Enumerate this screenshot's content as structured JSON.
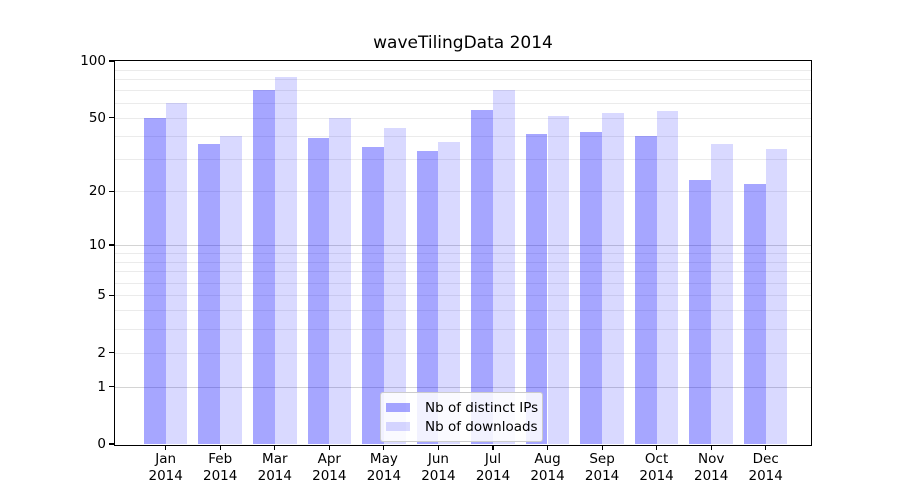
{
  "chart_data": {
    "type": "bar",
    "title": "waveTilingData 2014",
    "categories": [
      "Jan",
      "Feb",
      "Mar",
      "Apr",
      "May",
      "Jun",
      "Jul",
      "Aug",
      "Sep",
      "Oct",
      "Nov",
      "Dec"
    ],
    "category_year": "2014",
    "series": [
      {
        "name": "Nb of distinct IPs",
        "color": "rgba(0,0,255,0.35)",
        "values": [
          50,
          36,
          70,
          39,
          35,
          33,
          55,
          41,
          42,
          40,
          23,
          22
        ]
      },
      {
        "name": "Nb of downloads",
        "color": "rgba(0,0,255,0.15)",
        "values": [
          60,
          40,
          82,
          50,
          44,
          37,
          70,
          51,
          53,
          54,
          36,
          34
        ]
      }
    ],
    "xlabel": "",
    "ylabel": "",
    "y_axis": {
      "scale": "log1p",
      "range": [
        0,
        100
      ],
      "tick_values": [
        0,
        1,
        2,
        5,
        10,
        20,
        50,
        100
      ],
      "tick_labels": [
        "0",
        "1",
        "2",
        "5",
        "10",
        "20",
        "50",
        "100"
      ]
    },
    "grid": {
      "enabled": true,
      "minor_values": [
        2,
        3,
        4,
        5,
        6,
        7,
        8,
        9,
        20,
        30,
        40,
        50,
        60,
        70,
        80,
        90
      ],
      "major_values": [
        1,
        10
      ],
      "minor_color": "#ebebeb",
      "major_color": "#d4d4d4"
    },
    "legend": {
      "position": "lower center",
      "entries": [
        "Nb of distinct IPs",
        "Nb of downloads"
      ]
    }
  },
  "colors": {
    "background": "#ffffff",
    "axis": "#000000",
    "text": "#000000",
    "legend_border": "#cccccc"
  }
}
